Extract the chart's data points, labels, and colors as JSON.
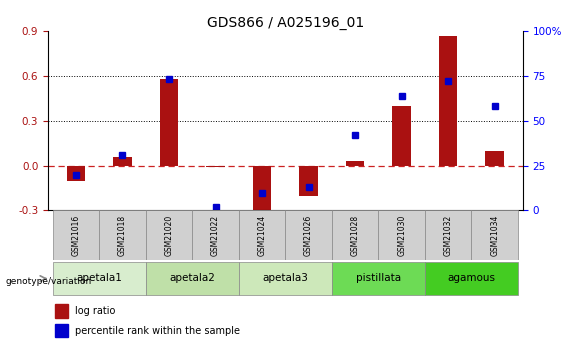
{
  "title": "GDS866 / A025196_01",
  "samples": [
    "GSM21016",
    "GSM21018",
    "GSM21020",
    "GSM21022",
    "GSM21024",
    "GSM21026",
    "GSM21028",
    "GSM21030",
    "GSM21032",
    "GSM21034"
  ],
  "log_ratio": [
    -0.1,
    0.06,
    0.58,
    -0.01,
    -0.345,
    -0.2,
    0.03,
    0.4,
    0.87,
    0.1
  ],
  "percentile_rank": [
    20,
    31,
    73,
    2,
    10,
    13,
    42,
    64,
    72,
    58
  ],
  "group_data": [
    {
      "label": "apetala1",
      "start": 0,
      "end": 2,
      "color": "#d8edce"
    },
    {
      "label": "apetala2",
      "start": 2,
      "end": 4,
      "color": "#bfe0a8"
    },
    {
      "label": "apetala3",
      "start": 4,
      "end": 6,
      "color": "#cde8ba"
    },
    {
      "label": "pistillata",
      "start": 6,
      "end": 8,
      "color": "#6ddb55"
    },
    {
      "label": "agamous",
      "start": 8,
      "end": 10,
      "color": "#44cc22"
    }
  ],
  "ylim_left": [
    -0.3,
    0.9
  ],
  "ylim_right": [
    0,
    100
  ],
  "yticks_left": [
    -0.3,
    0.0,
    0.3,
    0.6,
    0.9
  ],
  "yticks_right": [
    0,
    25,
    50,
    75,
    100
  ],
  "hlines": [
    0.3,
    0.6
  ],
  "bar_color": "#aa1111",
  "dot_color": "#0000cc",
  "zero_line_color": "#cc2222",
  "label_log_ratio": "log ratio",
  "label_percentile": "percentile rank within the sample",
  "genotype_label": "genotype/variation",
  "sample_cell_color": "#d0d0d0",
  "title_fontsize": 10,
  "tick_fontsize": 7.5,
  "bar_width": 0.4
}
